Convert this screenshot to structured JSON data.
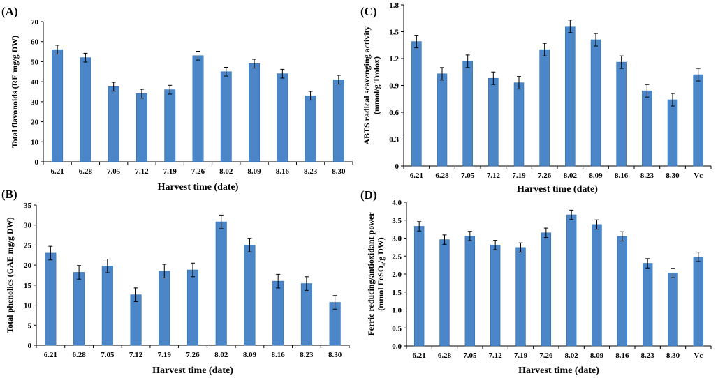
{
  "chart_data": [
    {
      "type": "bar",
      "panel_label": "(A)",
      "categories": [
        "6.21",
        "6.28",
        "7.05",
        "7.12",
        "7.19",
        "7.26",
        "8.02",
        "8.09",
        "8.16",
        "8.23",
        "8.30"
      ],
      "values": [
        56,
        52,
        37.5,
        34,
        36,
        53,
        45,
        49,
        44,
        33,
        41
      ],
      "errors": [
        2.2,
        2.2,
        2.2,
        2.2,
        2.2,
        2.2,
        2.2,
        2.2,
        2.2,
        2.2,
        2.2
      ],
      "xlabel": "Harvest time (date)",
      "ylabel": "Total flavonoids (RE mg/g DW)",
      "ylim": [
        0,
        70
      ],
      "yticks": [
        "0",
        "10",
        "20",
        "30",
        "40",
        "50",
        "60",
        "70"
      ],
      "bar_color": "#4a86c8"
    },
    {
      "type": "bar",
      "panel_label": "(B)",
      "categories": [
        "6.21",
        "6.28",
        "7.05",
        "7.12",
        "7.19",
        "7.26",
        "8.02",
        "8.09",
        "8.16",
        "8.23",
        "8.30"
      ],
      "values": [
        23,
        18.2,
        19.8,
        12.6,
        18.5,
        18.8,
        30.8,
        25,
        16,
        15.4,
        10.7
      ],
      "errors": [
        1.7,
        1.7,
        1.7,
        1.7,
        1.7,
        1.7,
        1.7,
        1.7,
        1.7,
        1.7,
        1.7
      ],
      "xlabel": "Harvest time (date)",
      "ylabel": "Total phenolics (GAE mg/g DW)",
      "ylim": [
        0,
        35
      ],
      "yticks": [
        "0",
        "5",
        "10",
        "15",
        "20",
        "25",
        "30",
        "35"
      ],
      "bar_color": "#4a86c8"
    },
    {
      "type": "bar",
      "panel_label": "(C)",
      "categories": [
        "6.21",
        "6.28",
        "7.05",
        "7.12",
        "7.19",
        "7.26",
        "8.02",
        "8.09",
        "8.16",
        "8.23",
        "8.30",
        "Vc"
      ],
      "values": [
        1.39,
        1.03,
        1.17,
        0.98,
        0.93,
        1.3,
        1.56,
        1.41,
        1.16,
        0.84,
        0.74,
        1.02
      ],
      "errors": [
        0.07,
        0.07,
        0.07,
        0.07,
        0.07,
        0.07,
        0.07,
        0.07,
        0.07,
        0.07,
        0.07,
        0.07
      ],
      "xlabel": "Harvest time (date)",
      "ylabel": "ABTS radical scavenging activity",
      "ylabel2": "(mmol/g Trolox)",
      "ylim": [
        0,
        1.8
      ],
      "yticks": [
        "0",
        "0.3",
        "0.6",
        "0.9",
        "1.2",
        "1.5",
        "1.8"
      ],
      "bar_color": "#4a86c8"
    },
    {
      "type": "bar",
      "panel_label": "(D)",
      "categories": [
        "6.21",
        "6.28",
        "7.05",
        "7.12",
        "7.19",
        "7.26",
        "8.02",
        "8.09",
        "8.16",
        "8.23",
        "8.30",
        "Vc"
      ],
      "values": [
        3.33,
        2.96,
        3.06,
        2.81,
        2.74,
        3.15,
        3.65,
        3.38,
        3.05,
        2.3,
        2.03,
        2.48
      ],
      "errors": [
        0.13,
        0.13,
        0.13,
        0.13,
        0.13,
        0.13,
        0.13,
        0.13,
        0.13,
        0.13,
        0.13,
        0.13
      ],
      "xlabel": "Harvest time (date)",
      "ylabel": "Ferric reducing/antioxidant power",
      "ylabel2": "(mmol FeSO₄/g DW)",
      "ylim": [
        0,
        4.0
      ],
      "yticks": [
        "0.0",
        "0.5",
        "1.0",
        "1.5",
        "2.0",
        "2.5",
        "3.0",
        "3.5",
        "4.0"
      ],
      "bar_color": "#4a86c8"
    }
  ]
}
